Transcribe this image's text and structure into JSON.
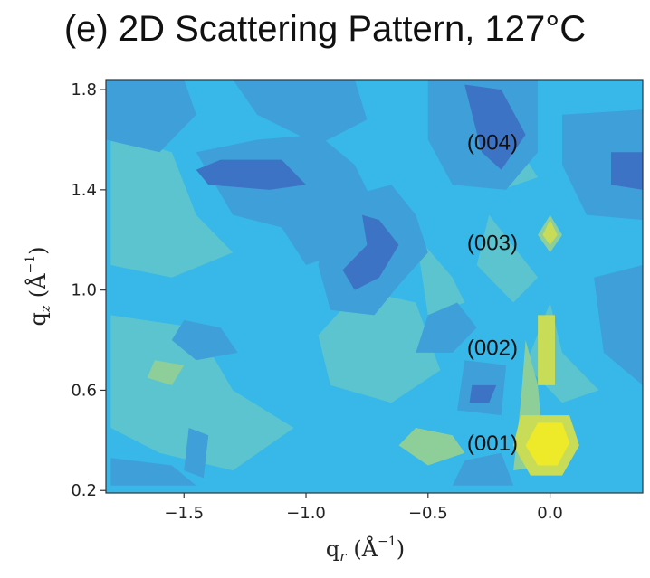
{
  "chart_data": {
    "type": "heatmap",
    "title": "(e) 2D Scattering Pattern, 127°C",
    "xlabel": "q_r (Å^-1)",
    "ylabel": "q_z (Å^-1)",
    "xlim": [
      -1.82,
      0.38
    ],
    "ylim": [
      0.19,
      1.84
    ],
    "x_ticks": [
      -1.5,
      -1.0,
      -0.5,
      0.0
    ],
    "x_tick_labels": [
      "−1.5",
      "−1.0",
      "−0.5",
      "0.0"
    ],
    "y_ticks": [
      0.2,
      0.6,
      1.0,
      1.4,
      1.8
    ],
    "y_tick_labels": [
      "0.2",
      "0.6",
      "1.0",
      "1.4",
      "1.8"
    ],
    "colormap": [
      "#2e4fa3",
      "#3d73c4",
      "#3f9fd9",
      "#37b8e8",
      "#5cc4cf",
      "#8ecf99",
      "#c8dc58",
      "#eeea2a"
    ],
    "levels": [
      0,
      1,
      2,
      3,
      4,
      5,
      6,
      7
    ],
    "background_level": 3,
    "regions": [
      {
        "level": 2,
        "points": [
          [
            -1.8,
            0.33
          ],
          [
            -1.55,
            0.3
          ],
          [
            -1.45,
            0.22
          ],
          [
            -1.8,
            0.22
          ]
        ]
      },
      {
        "level": 4,
        "points": [
          [
            -1.8,
            1.62
          ],
          [
            -1.55,
            1.55
          ],
          [
            -1.45,
            1.3
          ],
          [
            -1.3,
            1.15
          ],
          [
            -1.55,
            1.05
          ],
          [
            -1.8,
            1.1
          ]
        ]
      },
      {
        "level": 4,
        "points": [
          [
            -1.8,
            0.9
          ],
          [
            -1.45,
            0.85
          ],
          [
            -1.3,
            0.6
          ],
          [
            -1.05,
            0.45
          ],
          [
            -1.3,
            0.28
          ],
          [
            -1.6,
            0.35
          ],
          [
            -1.8,
            0.45
          ]
        ]
      },
      {
        "level": 4,
        "points": [
          [
            -0.78,
            1.0
          ],
          [
            -0.55,
            0.95
          ],
          [
            -0.45,
            0.68
          ],
          [
            -0.65,
            0.55
          ],
          [
            -0.9,
            0.62
          ],
          [
            -0.95,
            0.82
          ]
        ]
      },
      {
        "level": 4,
        "points": [
          [
            -0.55,
            1.22
          ],
          [
            -0.4,
            1.05
          ],
          [
            -0.35,
            0.95
          ],
          [
            -0.5,
            0.9
          ]
        ]
      },
      {
        "level": 4,
        "points": [
          [
            -0.3,
            1.8
          ],
          [
            -0.15,
            1.6
          ],
          [
            -0.05,
            1.45
          ],
          [
            -0.2,
            1.4
          ],
          [
            -0.32,
            1.55
          ]
        ]
      },
      {
        "level": 4,
        "points": [
          [
            -0.25,
            1.3
          ],
          [
            -0.05,
            1.05
          ],
          [
            -0.15,
            0.95
          ],
          [
            -0.3,
            1.1
          ]
        ]
      },
      {
        "level": 4,
        "points": [
          [
            0.0,
            0.95
          ],
          [
            0.05,
            0.75
          ],
          [
            0.2,
            0.6
          ],
          [
            0.05,
            0.55
          ],
          [
            -0.1,
            0.7
          ]
        ]
      },
      {
        "level": 2,
        "points": [
          [
            -1.82,
            1.84
          ],
          [
            -1.5,
            1.84
          ],
          [
            -1.45,
            1.7
          ],
          [
            -1.6,
            1.55
          ],
          [
            -1.82,
            1.6
          ]
        ]
      },
      {
        "level": 2,
        "points": [
          [
            -1.3,
            1.84
          ],
          [
            -0.8,
            1.84
          ],
          [
            -0.75,
            1.68
          ],
          [
            -0.95,
            1.58
          ],
          [
            -1.2,
            1.7
          ]
        ]
      },
      {
        "level": 2,
        "points": [
          [
            -1.2,
            1.6
          ],
          [
            -0.95,
            1.62
          ],
          [
            -0.8,
            1.5
          ],
          [
            -0.7,
            1.3
          ],
          [
            -0.85,
            1.15
          ],
          [
            -1.0,
            1.1
          ],
          [
            -1.1,
            1.25
          ],
          [
            -1.3,
            1.3
          ],
          [
            -1.45,
            1.55
          ]
        ]
      },
      {
        "level": 2,
        "points": [
          [
            -0.88,
            1.36
          ],
          [
            -0.65,
            1.42
          ],
          [
            -0.55,
            1.3
          ],
          [
            -0.5,
            1.15
          ],
          [
            -0.62,
            1.02
          ],
          [
            -0.72,
            0.9
          ],
          [
            -0.9,
            0.92
          ],
          [
            -0.95,
            1.1
          ]
        ]
      },
      {
        "level": 2,
        "points": [
          [
            -0.5,
            1.84
          ],
          [
            -0.05,
            1.84
          ],
          [
            -0.05,
            1.55
          ],
          [
            -0.18,
            1.4
          ],
          [
            -0.4,
            1.42
          ],
          [
            -0.5,
            1.6
          ]
        ]
      },
      {
        "level": 2,
        "points": [
          [
            0.05,
            1.7
          ],
          [
            0.38,
            1.72
          ],
          [
            0.38,
            1.28
          ],
          [
            0.15,
            1.3
          ],
          [
            0.05,
            1.5
          ]
        ]
      },
      {
        "level": 2,
        "points": [
          [
            0.18,
            1.05
          ],
          [
            0.38,
            1.1
          ],
          [
            0.38,
            0.62
          ],
          [
            0.22,
            0.75
          ]
        ]
      },
      {
        "level": 2,
        "points": [
          [
            -1.5,
            0.88
          ],
          [
            -1.35,
            0.85
          ],
          [
            -1.28,
            0.75
          ],
          [
            -1.45,
            0.72
          ],
          [
            -1.55,
            0.8
          ]
        ]
      },
      {
        "level": 2,
        "points": [
          [
            -1.48,
            0.45
          ],
          [
            -1.4,
            0.42
          ],
          [
            -1.42,
            0.25
          ],
          [
            -1.5,
            0.28
          ]
        ]
      },
      {
        "level": 2,
        "points": [
          [
            -0.35,
            0.72
          ],
          [
            -0.18,
            0.7
          ],
          [
            -0.2,
            0.5
          ],
          [
            -0.38,
            0.52
          ]
        ]
      },
      {
        "level": 2,
        "points": [
          [
            -0.5,
            0.9
          ],
          [
            -0.38,
            0.95
          ],
          [
            -0.3,
            0.85
          ],
          [
            -0.4,
            0.75
          ],
          [
            -0.55,
            0.75
          ]
        ]
      },
      {
        "level": 2,
        "points": [
          [
            -0.4,
            0.22
          ],
          [
            -0.15,
            0.22
          ],
          [
            -0.2,
            0.35
          ],
          [
            -0.35,
            0.32
          ]
        ]
      },
      {
        "level": 1,
        "points": [
          [
            -1.35,
            1.52
          ],
          [
            -1.1,
            1.52
          ],
          [
            -1.0,
            1.42
          ],
          [
            -1.15,
            1.4
          ],
          [
            -1.4,
            1.42
          ],
          [
            -1.45,
            1.48
          ]
        ]
      },
      {
        "level": 1,
        "points": [
          [
            -0.77,
            1.3
          ],
          [
            -0.7,
            1.28
          ],
          [
            -0.62,
            1.18
          ],
          [
            -0.7,
            1.05
          ],
          [
            -0.8,
            1.0
          ],
          [
            -0.85,
            1.08
          ],
          [
            -0.75,
            1.18
          ]
        ]
      },
      {
        "level": 1,
        "points": [
          [
            -0.35,
            1.82
          ],
          [
            -0.2,
            1.8
          ],
          [
            -0.1,
            1.62
          ],
          [
            -0.2,
            1.48
          ],
          [
            -0.28,
            1.55
          ]
        ]
      },
      {
        "level": 1,
        "points": [
          [
            0.25,
            1.55
          ],
          [
            0.38,
            1.55
          ],
          [
            0.38,
            1.4
          ],
          [
            0.25,
            1.42
          ]
        ]
      },
      {
        "level": 1,
        "points": [
          [
            -0.32,
            0.62
          ],
          [
            -0.22,
            0.62
          ],
          [
            -0.25,
            0.55
          ],
          [
            -0.33,
            0.55
          ]
        ]
      },
      {
        "level": 5,
        "points": [
          [
            -0.1,
            0.8
          ],
          [
            -0.05,
            0.62
          ],
          [
            -0.02,
            0.3
          ],
          [
            -0.15,
            0.28
          ],
          [
            -0.12,
            0.55
          ]
        ]
      },
      {
        "level": 5,
        "points": [
          [
            -0.55,
            0.45
          ],
          [
            -0.4,
            0.42
          ],
          [
            -0.35,
            0.35
          ],
          [
            -0.5,
            0.3
          ],
          [
            -0.62,
            0.38
          ]
        ]
      },
      {
        "level": 5,
        "points": [
          [
            -1.62,
            0.72
          ],
          [
            -1.5,
            0.7
          ],
          [
            -1.55,
            0.62
          ],
          [
            -1.65,
            0.65
          ]
        ]
      },
      {
        "level": 5,
        "points": [
          [
            0.0,
            1.3
          ],
          [
            0.05,
            1.22
          ],
          [
            0.0,
            1.15
          ],
          [
            -0.05,
            1.22
          ]
        ]
      },
      {
        "level": 6,
        "points": [
          [
            -0.12,
            0.5
          ],
          [
            0.08,
            0.5
          ],
          [
            0.12,
            0.38
          ],
          [
            0.05,
            0.26
          ],
          [
            -0.08,
            0.26
          ],
          [
            -0.15,
            0.38
          ]
        ]
      },
      {
        "level": 6,
        "points": [
          [
            -0.05,
            0.9
          ],
          [
            0.02,
            0.9
          ],
          [
            0.02,
            0.62
          ],
          [
            -0.05,
            0.62
          ]
        ]
      },
      {
        "level": 6,
        "points": [
          [
            0.0,
            1.28
          ],
          [
            0.03,
            1.22
          ],
          [
            0.0,
            1.18
          ],
          [
            -0.03,
            1.22
          ]
        ]
      },
      {
        "level": 7,
        "points": [
          [
            -0.05,
            0.47
          ],
          [
            0.05,
            0.47
          ],
          [
            0.08,
            0.39
          ],
          [
            0.03,
            0.3
          ],
          [
            -0.05,
            0.3
          ],
          [
            -0.1,
            0.38
          ]
        ]
      }
    ],
    "annotations": [
      {
        "text": "(001)",
        "x": -0.34,
        "y": 0.36
      },
      {
        "text": "(002)",
        "x": -0.34,
        "y": 0.74
      },
      {
        "text": "(003)",
        "x": -0.34,
        "y": 1.16
      },
      {
        "text": "(004)",
        "x": -0.34,
        "y": 1.56
      }
    ]
  }
}
